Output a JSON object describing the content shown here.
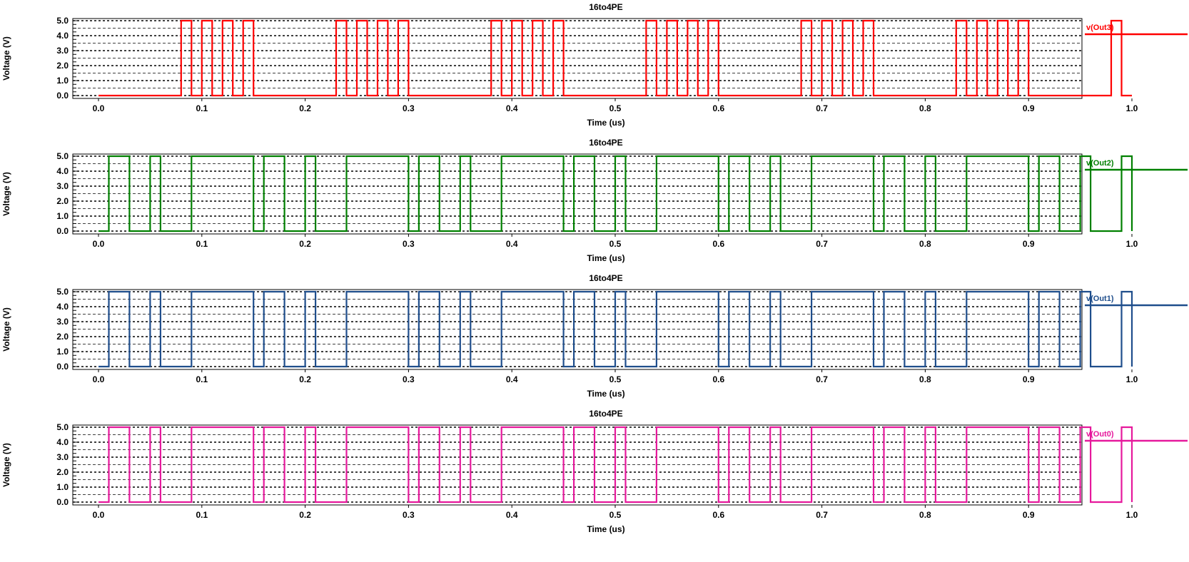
{
  "chart_data": [
    {
      "type": "line",
      "title": "16to4PE",
      "xlabel": "Time (us)",
      "ylabel": "Voltage (V)",
      "xlim": [
        0.0,
        1.0
      ],
      "ylim": [
        0.0,
        5.0
      ],
      "xticks": [
        "0.0",
        "0.1",
        "0.2",
        "0.3",
        "0.4",
        "0.5",
        "0.6",
        "0.7",
        "0.8",
        "0.9",
        "1.0"
      ],
      "yticks": [
        "0.0",
        "1.0",
        "2.0",
        "3.0",
        "4.0",
        "5.0"
      ],
      "grid": true,
      "legend_position": "right",
      "series": [
        {
          "name": "v(Out3)",
          "color": "#ff0000",
          "high": 5.0,
          "low": 0.0,
          "high_intervals": [
            [
              0.08,
              0.09
            ],
            [
              0.1,
              0.11
            ],
            [
              0.12,
              0.13
            ],
            [
              0.14,
              0.15
            ],
            [
              0.23,
              0.24
            ],
            [
              0.25,
              0.26
            ],
            [
              0.27,
              0.28
            ],
            [
              0.29,
              0.3
            ],
            [
              0.38,
              0.39
            ],
            [
              0.4,
              0.41
            ],
            [
              0.42,
              0.43
            ],
            [
              0.44,
              0.45
            ],
            [
              0.53,
              0.54
            ],
            [
              0.55,
              0.56
            ],
            [
              0.57,
              0.58
            ],
            [
              0.59,
              0.6
            ],
            [
              0.68,
              0.69
            ],
            [
              0.7,
              0.71
            ],
            [
              0.72,
              0.73
            ],
            [
              0.74,
              0.75
            ],
            [
              0.83,
              0.84
            ],
            [
              0.85,
              0.86
            ],
            [
              0.87,
              0.88
            ],
            [
              0.89,
              0.9
            ],
            [
              0.98,
              0.99
            ]
          ]
        }
      ]
    },
    {
      "type": "line",
      "title": "16to4PE",
      "xlabel": "Time (us)",
      "ylabel": "Voltage (V)",
      "xlim": [
        0.0,
        1.0
      ],
      "ylim": [
        0.0,
        5.0
      ],
      "xticks": [
        "0.0",
        "0.1",
        "0.2",
        "0.3",
        "0.4",
        "0.5",
        "0.6",
        "0.7",
        "0.8",
        "0.9",
        "1.0"
      ],
      "yticks": [
        "0.0",
        "1.0",
        "2.0",
        "3.0",
        "4.0",
        "5.0"
      ],
      "grid": true,
      "legend_position": "right",
      "series": [
        {
          "name": "v(Out2)",
          "color": "#008000",
          "high": 5.0,
          "low": 0.0,
          "high_intervals": [
            [
              0.01,
              0.03
            ],
            [
              0.05,
              0.06
            ],
            [
              0.09,
              0.15
            ],
            [
              0.16,
              0.18
            ],
            [
              0.2,
              0.21
            ],
            [
              0.24,
              0.3
            ],
            [
              0.31,
              0.33
            ],
            [
              0.35,
              0.36
            ],
            [
              0.39,
              0.45
            ],
            [
              0.46,
              0.48
            ],
            [
              0.5,
              0.51
            ],
            [
              0.54,
              0.6
            ],
            [
              0.61,
              0.63
            ],
            [
              0.65,
              0.66
            ],
            [
              0.69,
              0.75
            ],
            [
              0.76,
              0.78
            ],
            [
              0.8,
              0.81
            ],
            [
              0.84,
              0.9
            ],
            [
              0.91,
              0.93
            ],
            [
              0.95,
              0.96
            ],
            [
              0.99,
              1.0
            ]
          ]
        }
      ]
    },
    {
      "type": "line",
      "title": "16to4PE",
      "xlabel": "Time (us)",
      "ylabel": "Voltage (V)",
      "xlim": [
        0.0,
        1.0
      ],
      "ylim": [
        0.0,
        5.0
      ],
      "xticks": [
        "0.0",
        "0.1",
        "0.2",
        "0.3",
        "0.4",
        "0.5",
        "0.6",
        "0.7",
        "0.8",
        "0.9",
        "1.0"
      ],
      "yticks": [
        "0.0",
        "1.0",
        "2.0",
        "3.0",
        "4.0",
        "5.0"
      ],
      "grid": true,
      "legend_position": "right",
      "series": [
        {
          "name": "v(Out1)",
          "color": "#1f4e8c",
          "high": 5.0,
          "low": 0.0,
          "high_intervals": [
            [
              0.01,
              0.03
            ],
            [
              0.05,
              0.06
            ],
            [
              0.09,
              0.15
            ],
            [
              0.16,
              0.18
            ],
            [
              0.2,
              0.21
            ],
            [
              0.24,
              0.3
            ],
            [
              0.31,
              0.33
            ],
            [
              0.35,
              0.36
            ],
            [
              0.39,
              0.45
            ],
            [
              0.46,
              0.48
            ],
            [
              0.5,
              0.51
            ],
            [
              0.54,
              0.6
            ],
            [
              0.61,
              0.63
            ],
            [
              0.65,
              0.66
            ],
            [
              0.69,
              0.75
            ],
            [
              0.76,
              0.78
            ],
            [
              0.8,
              0.81
            ],
            [
              0.84,
              0.9
            ],
            [
              0.91,
              0.93
            ],
            [
              0.95,
              0.96
            ],
            [
              0.99,
              1.0
            ]
          ]
        }
      ]
    },
    {
      "type": "line",
      "title": "16to4PE",
      "xlabel": "Time (us)",
      "ylabel": "Voltage (V)",
      "xlim": [
        0.0,
        1.0
      ],
      "ylim": [
        0.0,
        5.0
      ],
      "xticks": [
        "0.0",
        "0.1",
        "0.2",
        "0.3",
        "0.4",
        "0.5",
        "0.6",
        "0.7",
        "0.8",
        "0.9",
        "1.0"
      ],
      "yticks": [
        "0.0",
        "1.0",
        "2.0",
        "3.0",
        "4.0",
        "5.0"
      ],
      "grid": true,
      "legend_position": "right",
      "series": [
        {
          "name": "v(Out0)",
          "color": "#e6199c",
          "high": 5.0,
          "low": 0.0,
          "high_intervals": [
            [
              0.01,
              0.03
            ],
            [
              0.05,
              0.06
            ],
            [
              0.09,
              0.15
            ],
            [
              0.16,
              0.18
            ],
            [
              0.2,
              0.21
            ],
            [
              0.24,
              0.3
            ],
            [
              0.31,
              0.33
            ],
            [
              0.35,
              0.36
            ],
            [
              0.39,
              0.45
            ],
            [
              0.46,
              0.48
            ],
            [
              0.5,
              0.51
            ],
            [
              0.54,
              0.6
            ],
            [
              0.61,
              0.63
            ],
            [
              0.65,
              0.66
            ],
            [
              0.69,
              0.75
            ],
            [
              0.76,
              0.78
            ],
            [
              0.8,
              0.81
            ],
            [
              0.84,
              0.9
            ],
            [
              0.91,
              0.93
            ],
            [
              0.95,
              0.96
            ],
            [
              0.99,
              1.0
            ]
          ]
        }
      ]
    }
  ]
}
